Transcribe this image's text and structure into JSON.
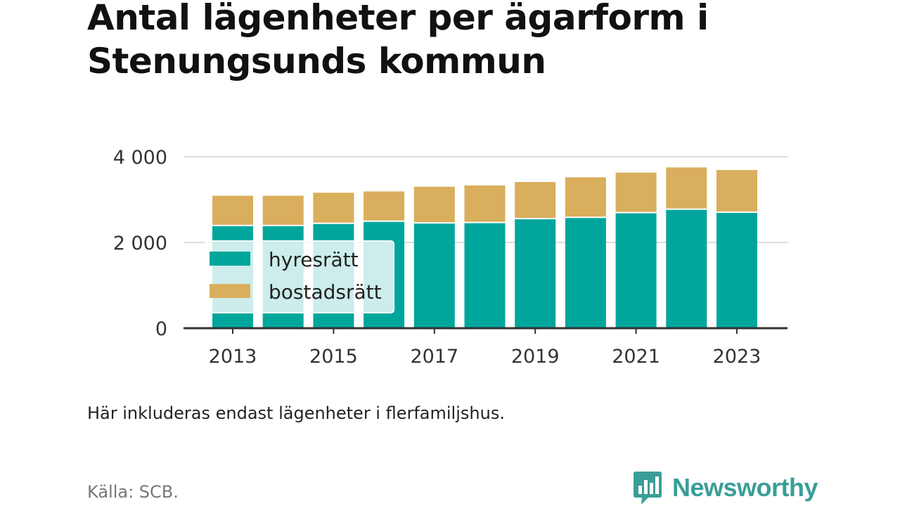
{
  "title": "Antal lägenheter per ägarform i Stenungsunds kommun",
  "note": "Här inkluderas endast lägenheter i flerfamiljshus.",
  "source": "Källa: SCB.",
  "brand": {
    "name": "Newsworthy",
    "icon": "newsworthy-chart-bubble-icon",
    "color": "#3a9e98"
  },
  "colors": {
    "hyresratt": "#00a69c",
    "bostadsratt": "#d9ae5c",
    "grid": "#dddddd",
    "axis": "#333333"
  },
  "chart_data": {
    "type": "bar",
    "stacked": true,
    "categories": [
      "2013",
      "2014",
      "2015",
      "2016",
      "2017",
      "2018",
      "2019",
      "2020",
      "2021",
      "2022",
      "2023"
    ],
    "x_tick_labels": [
      "2013",
      "2015",
      "2017",
      "2019",
      "2021",
      "2023"
    ],
    "y_ticks": [
      0,
      2000,
      4000
    ],
    "y_tick_labels": [
      "0",
      "2 000",
      "4 000"
    ],
    "ylim": [
      0,
      4000
    ],
    "grid": true,
    "legend": {
      "placement": "left-inside"
    },
    "series": [
      {
        "name": "hyresrätt",
        "color": "#00a69c",
        "values": [
          2380,
          2380,
          2430,
          2480,
          2440,
          2450,
          2540,
          2570,
          2680,
          2760,
          2690
        ]
      },
      {
        "name": "bostadsrätt",
        "color": "#d9ae5c",
        "values": [
          710,
          710,
          730,
          710,
          860,
          880,
          870,
          950,
          950,
          990,
          1000
        ]
      }
    ]
  }
}
